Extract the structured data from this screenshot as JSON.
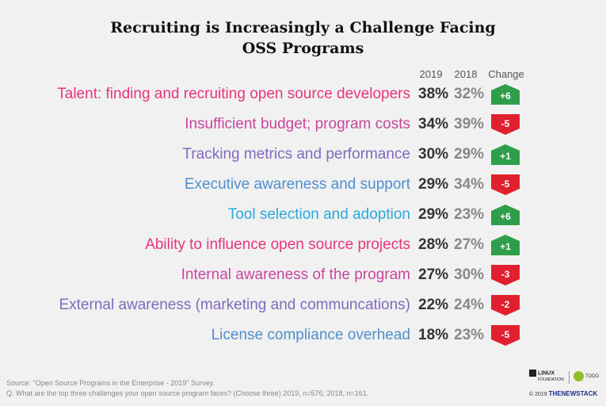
{
  "chart_data": {
    "type": "table",
    "title_line1": "Recruiting is Increasingly a Challenge Facing",
    "title_line2": "OSS Programs",
    "columns": [
      "2019",
      "2018",
      "Change"
    ],
    "rows": [
      {
        "label": "Talent: finding and recruiting open source developers",
        "v2019": "38%",
        "v2018": "32%",
        "change": "+6",
        "y2019": 38,
        "y2018": 32,
        "delta": 6,
        "color": "#e8357a"
      },
      {
        "label": "Insufficient budget; program costs",
        "v2019": "34%",
        "v2018": "39%",
        "change": "-5",
        "y2019": 34,
        "y2018": 39,
        "delta": -5,
        "color": "#c9469d"
      },
      {
        "label": "Tracking metrics and performance",
        "v2019": "30%",
        "v2018": "29%",
        "change": "+1",
        "y2019": 30,
        "y2018": 29,
        "delta": 1,
        "color": "#7f6abd"
      },
      {
        "label": "Executive awareness and support",
        "v2019": "29%",
        "v2018": "34%",
        "change": "-5",
        "y2019": 29,
        "y2018": 34,
        "delta": -5,
        "color": "#4f8fce"
      },
      {
        "label": "Tool selection and adoption",
        "v2019": "29%",
        "v2018": "23%",
        "change": "+6",
        "y2019": 29,
        "y2018": 23,
        "delta": 6,
        "color": "#2ca9dc"
      },
      {
        "label": "Ability to influence open source projects",
        "v2019": "28%",
        "v2018": "27%",
        "change": "+1",
        "y2019": 28,
        "y2018": 27,
        "delta": 1,
        "color": "#e8357a"
      },
      {
        "label": "Internal awareness of the program",
        "v2019": "27%",
        "v2018": "30%",
        "change": "-3",
        "y2019": 27,
        "y2018": 30,
        "delta": -3,
        "color": "#c9469d"
      },
      {
        "label": "External awareness (marketing and communcations)",
        "v2019": "22%",
        "v2018": "24%",
        "change": "-2",
        "y2019": 22,
        "y2018": 24,
        "delta": -2,
        "color": "#7f6abd"
      },
      {
        "label": "License compliance overhead",
        "v2019": "18%",
        "v2018": "23%",
        "change": "-5",
        "y2019": 18,
        "y2018": 23,
        "delta": -5,
        "color": "#4f8fce"
      }
    ],
    "colors": {
      "positive": "#2e9e4a",
      "negative": "#e0202f"
    }
  },
  "footer": {
    "source": "Source: \"Open Source Programs in the Enterprise - 2019\" Survey.",
    "question": "Q. What are the top three challenges your open source program faces? (Choose three) 2019, n=576; 2018, n=161."
  },
  "logos": {
    "lf_line1": "LINUX",
    "lf_line2": "FOUNDATION",
    "todo": "TODO",
    "copyright": "© 2019",
    "tns": "THENEWSTACK"
  }
}
